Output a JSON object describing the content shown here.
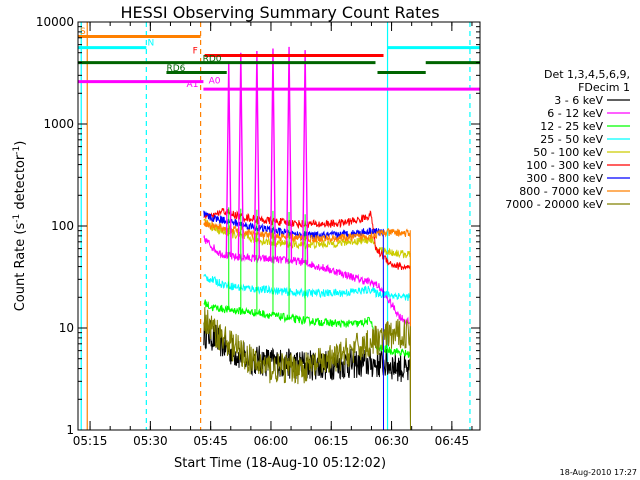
{
  "chart_data": {
    "type": "line",
    "title": "HESSI Observing Summary Count Rates",
    "xlabel": "Start Time (18-Aug-10 05:12:02)",
    "ylabel_main": "Count Rate (s",
    "ylabel_sup1": "-1",
    "ylabel_mid": " detector",
    "ylabel_sup2": "-1",
    "ylabel_end": ")",
    "yscale": "log",
    "ylim": [
      1,
      10000
    ],
    "xlim_minutes": [
      0,
      100
    ],
    "yticks": [
      {
        "v": 1,
        "label": "1"
      },
      {
        "v": 10,
        "label": "10"
      },
      {
        "v": 100,
        "label": "100"
      },
      {
        "v": 1000,
        "label": "1000"
      },
      {
        "v": 10000,
        "label": "10000"
      }
    ],
    "xticks": [
      {
        "t": 3,
        "label": "05:15"
      },
      {
        "t": 18,
        "label": "05:30"
      },
      {
        "t": 33,
        "label": "05:45"
      },
      {
        "t": 48,
        "label": "06:00"
      },
      {
        "t": 63,
        "label": "06:15"
      },
      {
        "t": 78,
        "label": "06:30"
      },
      {
        "t": 93,
        "label": "06:45"
      }
    ],
    "legend": {
      "position": "right",
      "header1": "Det 1,3,4,5,6,9,",
      "header2": "FDecim 1"
    },
    "series": [
      {
        "name": "3 - 6 keV",
        "color": "#000000",
        "start": 31.3,
        "end": 82.7,
        "base": 5,
        "x": [
          31.3,
          33,
          35,
          38,
          42,
          50,
          60,
          70,
          76,
          80,
          82.7
        ],
        "y": [
          9,
          8.5,
          7.5,
          6,
          5,
          4.5,
          4.3,
          4.5,
          4.5,
          4.2,
          3.5
        ]
      },
      {
        "name": "6 - 12 keV",
        "color": "#ff00ff",
        "start": 31.3,
        "end": 82.7,
        "base": 40,
        "x": [
          31.3,
          33,
          35,
          38,
          45,
          55,
          60,
          65,
          70,
          74,
          75,
          78,
          80,
          82.7
        ],
        "y": [
          75,
          65,
          55,
          50,
          48,
          45,
          40,
          35,
          30,
          27,
          25,
          17,
          13,
          11
        ]
      },
      {
        "name": "12 - 25 keV",
        "color": "#00ff00",
        "start": 31.3,
        "end": 82.7,
        "base": 13,
        "x": [
          31.3,
          33,
          38,
          45,
          55,
          65,
          70,
          73,
          74,
          78,
          82.7
        ],
        "y": [
          18,
          16,
          15,
          14,
          12,
          11,
          11,
          12,
          6.5,
          6,
          5.5
        ]
      },
      {
        "name": "25 - 50 keV",
        "color": "#00ffff",
        "start": 31.3,
        "end": 82.7,
        "base": 25,
        "x": [
          31.3,
          33,
          36,
          40,
          45,
          55,
          65,
          70,
          73,
          74,
          78,
          82.7
        ],
        "y": [
          32,
          30,
          27,
          25,
          24,
          22,
          22,
          23,
          24,
          22,
          21,
          20
        ]
      },
      {
        "name": "50 - 100 keV",
        "color": "#cccc00",
        "start": 31.3,
        "end": 82.7,
        "base": 70,
        "x": [
          31.3,
          33,
          35,
          40,
          45,
          50,
          55,
          60,
          65,
          70,
          73,
          74,
          78,
          82.7
        ],
        "y": [
          110,
          100,
          90,
          80,
          72,
          68,
          65,
          66,
          68,
          72,
          75,
          60,
          55,
          52
        ]
      },
      {
        "name": "100 - 300 keV",
        "color": "#ff0000",
        "start": 31.3,
        "end": 82.7,
        "base": 110,
        "x": [
          31.3,
          33,
          36,
          40,
          45,
          50,
          55,
          60,
          65,
          70,
          73,
          74,
          78,
          82.7
        ],
        "y": [
          130,
          120,
          140,
          125,
          115,
          110,
          105,
          104,
          106,
          115,
          130,
          60,
          42,
          38
        ]
      },
      {
        "name": "300 - 800 keV",
        "color": "#0000ff",
        "start": 31.3,
        "end": 76,
        "base": 90,
        "x": [
          31.3,
          33,
          36,
          40,
          45,
          50,
          55,
          60,
          65,
          70,
          73,
          76
        ],
        "y": [
          130,
          120,
          115,
          105,
          95,
          88,
          82,
          80,
          82,
          86,
          90,
          86
        ]
      },
      {
        "name": "800 - 7000 keV",
        "color": "#ff8000",
        "start": 31.3,
        "end": 82.7,
        "base": 80,
        "x": [
          31.3,
          33,
          36,
          40,
          45,
          50,
          55,
          60,
          65,
          70,
          74,
          76,
          80,
          82.7
        ],
        "y": [
          110,
          100,
          95,
          90,
          82,
          78,
          76,
          75,
          76,
          78,
          82,
          86,
          86,
          84
        ]
      },
      {
        "name": "7000 - 20000 keV",
        "color": "#808000",
        "start": 31.3,
        "end": 82.7,
        "base": 5,
        "x": [
          31.3,
          33,
          36,
          40,
          44,
          48,
          52,
          56,
          60,
          64,
          68,
          72,
          74,
          78,
          82.7
        ],
        "y": [
          13,
          10,
          8,
          6,
          4.5,
          4,
          4,
          4,
          4.5,
          5,
          6,
          7,
          7.5,
          8.5,
          9
        ]
      }
    ],
    "flares_6_12_keV": [
      {
        "t": 37.5,
        "peak": 4000
      },
      {
        "t": 40.5,
        "peak": 5000
      },
      {
        "t": 44.5,
        "peak": 5200
      },
      {
        "t": 48.5,
        "peak": 5500
      },
      {
        "t": 52.5,
        "peak": 5700
      },
      {
        "t": 56.5,
        "peak": 5300
      }
    ],
    "state_bars": [
      {
        "label": "S",
        "color": "#ff8000",
        "y": 7200,
        "segments": [
          [
            0,
            30.5
          ]
        ]
      },
      {
        "label": "N",
        "color": "#00ffff",
        "y": 5600,
        "segments": [
          [
            0,
            17
          ],
          [
            77,
            100
          ]
        ]
      },
      {
        "label": "F",
        "color": "#ff0000",
        "y": 4700,
        "segments": [
          [
            31.5,
            76
          ]
        ]
      },
      {
        "label": "RD0",
        "color": "#006400",
        "y": 4000,
        "segments": [
          [
            0,
            74
          ],
          [
            86.5,
            100
          ]
        ]
      },
      {
        "label": "RD6",
        "color": "#006400",
        "y": 3200,
        "segments": [
          [
            22,
            37
          ],
          [
            74.5,
            86.5
          ]
        ]
      },
      {
        "label": "A1",
        "color": "#ff00ff",
        "y": 2600,
        "segments": [
          [
            0,
            31.2
          ]
        ]
      },
      {
        "label": "A0",
        "color": "#ff00ff",
        "y": 2200,
        "segments": [
          [
            31.2,
            100
          ]
        ]
      }
    ],
    "vlines": [
      {
        "t": 0.8,
        "color": "#00ffff",
        "dash": false
      },
      {
        "t": 2.3,
        "color": "#ff8000",
        "dash": false
      },
      {
        "t": 17,
        "color": "#00ffff",
        "dash": true
      },
      {
        "t": 30.5,
        "color": "#ff8000",
        "dash": true
      },
      {
        "t": 77,
        "color": "#00ffff",
        "dash": false
      },
      {
        "t": 97.5,
        "color": "#00ffff",
        "dash": true
      }
    ],
    "state_labels": [
      {
        "text": "S",
        "color": "#ff8000",
        "t": 0.5,
        "y": 7600
      },
      {
        "text": "N",
        "color": "#00ffff",
        "t": 17.3,
        "y": 5900
      },
      {
        "text": "F",
        "color": "#ff0000",
        "t": 28.5,
        "y": 4900
      },
      {
        "text": "RD0",
        "color": "#006400",
        "t": 31.0,
        "y": 4100
      },
      {
        "text": "RD6",
        "color": "#006400",
        "t": 22,
        "y": 3300
      },
      {
        "text": "A1",
        "color": "#ff00ff",
        "t": 27,
        "y": 2300
      },
      {
        "text": "A0",
        "color": "#ff00ff",
        "t": 32.5,
        "y": 2500
      }
    ]
  },
  "footer_date": "18-Aug-2010 17:27"
}
